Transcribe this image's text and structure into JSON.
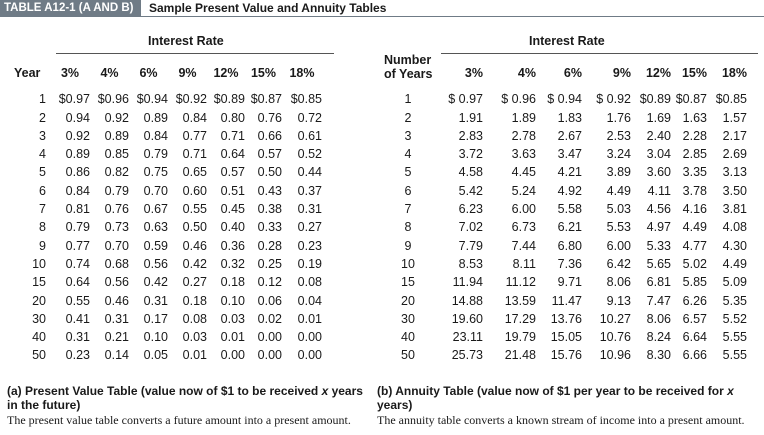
{
  "header": {
    "tag": "TABLE A12-1 (A AND B)",
    "title": "Sample Present Value and Annuity Tables"
  },
  "pv": {
    "group_label": "Interest Rate",
    "col_header": "Year",
    "rates": [
      "3%",
      "4%",
      "6%",
      "9%",
      "12%",
      "15%",
      "18%"
    ],
    "rows": [
      [
        "1",
        "$0.97",
        "$0.96",
        "$0.94",
        "$0.92",
        "$0.89",
        "$0.87",
        "$0.85"
      ],
      [
        "2",
        "0.94",
        "0.92",
        "0.89",
        "0.84",
        "0.80",
        "0.76",
        "0.72"
      ],
      [
        "3",
        "0.92",
        "0.89",
        "0.84",
        "0.77",
        "0.71",
        "0.66",
        "0.61"
      ],
      [
        "4",
        "0.89",
        "0.85",
        "0.79",
        "0.71",
        "0.64",
        "0.57",
        "0.52"
      ],
      [
        "5",
        "0.86",
        "0.82",
        "0.75",
        "0.65",
        "0.57",
        "0.50",
        "0.44"
      ],
      [
        "6",
        "0.84",
        "0.79",
        "0.70",
        "0.60",
        "0.51",
        "0.43",
        "0.37"
      ],
      [
        "7",
        "0.81",
        "0.76",
        "0.67",
        "0.55",
        "0.45",
        "0.38",
        "0.31"
      ],
      [
        "8",
        "0.79",
        "0.73",
        "0.63",
        "0.50",
        "0.40",
        "0.33",
        "0.27"
      ],
      [
        "9",
        "0.77",
        "0.70",
        "0.59",
        "0.46",
        "0.36",
        "0.28",
        "0.23"
      ],
      [
        "10",
        "0.74",
        "0.68",
        "0.56",
        "0.42",
        "0.32",
        "0.25",
        "0.19"
      ],
      [
        "15",
        "0.64",
        "0.56",
        "0.42",
        "0.27",
        "0.18",
        "0.12",
        "0.08"
      ],
      [
        "20",
        "0.55",
        "0.46",
        "0.31",
        "0.18",
        "0.10",
        "0.06",
        "0.04"
      ],
      [
        "30",
        "0.41",
        "0.31",
        "0.17",
        "0.08",
        "0.03",
        "0.02",
        "0.01"
      ],
      [
        "40",
        "0.31",
        "0.21",
        "0.10",
        "0.03",
        "0.01",
        "0.00",
        "0.00"
      ],
      [
        "50",
        "0.23",
        "0.14",
        "0.05",
        "0.01",
        "0.00",
        "0.00",
        "0.00"
      ]
    ],
    "caption_title_1": "(a) Present Value Table (value now of $1 to be received ",
    "caption_title_em": "x",
    "caption_title_2": " years in the future)",
    "caption_desc": "The present value table converts a future amount into a present amount."
  },
  "ann": {
    "group_label": "Interest Rate",
    "col_header_1": "Number",
    "col_header_2": "of Years",
    "rates": [
      "3%",
      "4%",
      "6%",
      "9%",
      "12%",
      "15%",
      "18%"
    ],
    "rows": [
      [
        "1",
        "$ 0.97",
        "$ 0.96",
        "$ 0.94",
        "$ 0.92",
        "$0.89",
        "$0.87",
        "$0.85"
      ],
      [
        "2",
        "1.91",
        "1.89",
        "1.83",
        "1.76",
        "1.69",
        "1.63",
        "1.57"
      ],
      [
        "3",
        "2.83",
        "2.78",
        "2.67",
        "2.53",
        "2.40",
        "2.28",
        "2.17"
      ],
      [
        "4",
        "3.72",
        "3.63",
        "3.47",
        "3.24",
        "3.04",
        "2.85",
        "2.69"
      ],
      [
        "5",
        "4.58",
        "4.45",
        "4.21",
        "3.89",
        "3.60",
        "3.35",
        "3.13"
      ],
      [
        "6",
        "5.42",
        "5.24",
        "4.92",
        "4.49",
        "4.11",
        "3.78",
        "3.50"
      ],
      [
        "7",
        "6.23",
        "6.00",
        "5.58",
        "5.03",
        "4.56",
        "4.16",
        "3.81"
      ],
      [
        "8",
        "7.02",
        "6.73",
        "6.21",
        "5.53",
        "4.97",
        "4.49",
        "4.08"
      ],
      [
        "9",
        "7.79",
        "7.44",
        "6.80",
        "6.00",
        "5.33",
        "4.77",
        "4.30"
      ],
      [
        "10",
        "8.53",
        "8.11",
        "7.36",
        "6.42",
        "5.65",
        "5.02",
        "4.49"
      ],
      [
        "15",
        "11.94",
        "11.12",
        "9.71",
        "8.06",
        "6.81",
        "5.85",
        "5.09"
      ],
      [
        "20",
        "14.88",
        "13.59",
        "11.47",
        "9.13",
        "7.47",
        "6.26",
        "5.35"
      ],
      [
        "30",
        "19.60",
        "17.29",
        "13.76",
        "10.27",
        "8.06",
        "6.57",
        "5.52"
      ],
      [
        "40",
        "23.11",
        "19.79",
        "15.05",
        "10.76",
        "8.24",
        "6.64",
        "5.55"
      ],
      [
        "50",
        "25.73",
        "21.48",
        "15.76",
        "10.96",
        "8.30",
        "6.66",
        "5.55"
      ]
    ],
    "caption_title_1": "(b) Annuity Table (value now of $1 per year to be received for ",
    "caption_title_em": "x",
    "caption_title_2": " years)",
    "caption_desc": "The annuity table converts a known stream of income into a present amount."
  }
}
